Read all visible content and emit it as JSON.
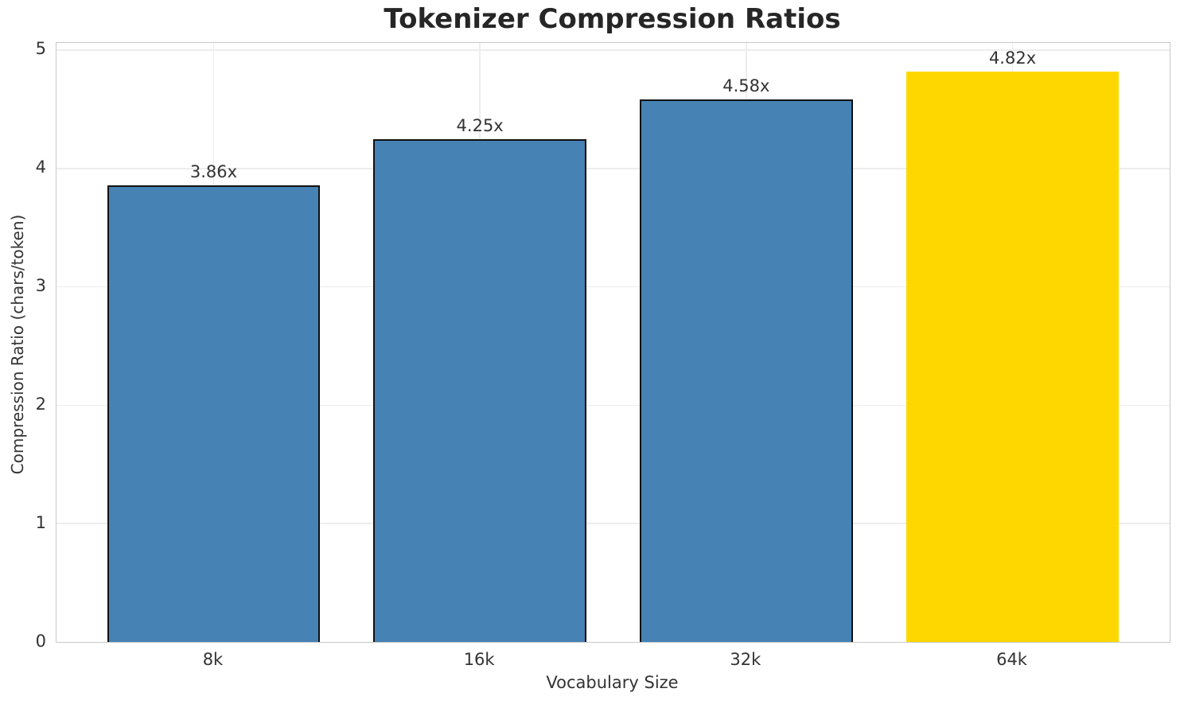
{
  "chart_data": {
    "type": "bar",
    "title": "Tokenizer Compression Ratios",
    "xlabel": "Vocabulary Size",
    "ylabel": "Compression Ratio (chars/token)",
    "categories": [
      "8k",
      "16k",
      "32k",
      "64k"
    ],
    "values": [
      3.86,
      4.25,
      4.58,
      4.82
    ],
    "value_labels": [
      "3.86x",
      "4.25x",
      "4.58x",
      "4.82x"
    ],
    "bar_colors": [
      "#4682B4",
      "#4682B4",
      "#4682B4",
      "#FFD700"
    ],
    "bar_edges": [
      true,
      true,
      true,
      false
    ],
    "ylim": [
      0,
      5.06
    ],
    "yticks": [
      0,
      1,
      2,
      3,
      4,
      5
    ],
    "grid": "both",
    "legend": "none",
    "colors": {
      "default_bar": "#4682B4",
      "highlight_bar": "#FFD700",
      "bar_edge": "#111111",
      "grid_line": "#ededed",
      "spine": "#c9c9c9",
      "text": "#333333",
      "title_text": "#262626"
    }
  }
}
